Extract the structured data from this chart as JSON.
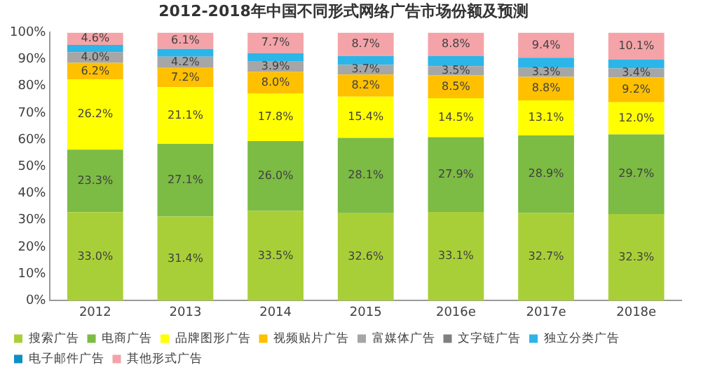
{
  "chart_data": {
    "type": "bar",
    "stacked": true,
    "title": "2012-2018年中国不同形式网络广告市场份额及预测",
    "categories": [
      "2012",
      "2013",
      "2014",
      "2015",
      "2016e",
      "2017e",
      "2018e"
    ],
    "ylim": [
      0,
      100
    ],
    "yticks": [
      {
        "value": 0,
        "label": "0%"
      },
      {
        "value": 10,
        "label": "10%"
      },
      {
        "value": 20,
        "label": "20%"
      },
      {
        "value": 30,
        "label": "30%"
      },
      {
        "value": 40,
        "label": "40%"
      },
      {
        "value": 50,
        "label": "50%"
      },
      {
        "value": 60,
        "label": "60%"
      },
      {
        "value": 70,
        "label": "70%"
      },
      {
        "value": 80,
        "label": "80%"
      },
      {
        "value": 90,
        "label": "90%"
      },
      {
        "value": 100,
        "label": "100%"
      }
    ],
    "grid": false,
    "legend": "bottom",
    "series": [
      {
        "name": "搜索广告",
        "color": "#a9cf38",
        "values": [
          33.0,
          31.4,
          33.5,
          32.6,
          33.1,
          32.7,
          32.3
        ],
        "value_labels": [
          "33.0%",
          "31.4%",
          "33.5%",
          "32.6%",
          "33.1%",
          "32.7%",
          "32.3%"
        ]
      },
      {
        "name": "电商广告",
        "color": "#7cbb44",
        "values": [
          23.3,
          27.1,
          26.0,
          28.1,
          27.9,
          28.9,
          29.7
        ],
        "value_labels": [
          "23.3%",
          "27.1%",
          "26.0%",
          "28.1%",
          "27.9%",
          "28.9%",
          "29.7%"
        ]
      },
      {
        "name": "品牌图形广告",
        "color": "#ffff00",
        "values": [
          26.2,
          21.1,
          17.8,
          15.4,
          14.5,
          13.1,
          12.0
        ],
        "value_labels": [
          "26.2%",
          "21.1%",
          "17.8%",
          "15.4%",
          "14.5%",
          "13.1%",
          "12.0%"
        ]
      },
      {
        "name": "视频贴片广告",
        "color": "#ffc000",
        "values": [
          6.2,
          7.2,
          8.0,
          8.2,
          8.5,
          8.8,
          9.2
        ],
        "value_labels": [
          "6.2%",
          "7.2%",
          "8.0%",
          "8.2%",
          "8.5%",
          "8.8%",
          "9.2%"
        ]
      },
      {
        "name": "富媒体广告",
        "color": "#a6a6a6",
        "values": [
          4.0,
          4.2,
          3.9,
          3.7,
          3.5,
          3.3,
          3.4
        ],
        "value_labels": [
          "4.0%",
          "4.2%",
          "3.9%",
          "3.7%",
          "3.5%",
          "3.3%",
          "3.4%"
        ]
      },
      {
        "name": "文字链广告",
        "color": "#7f7f7f",
        "values": [
          0,
          0,
          0,
          0,
          0,
          0,
          0
        ]
      },
      {
        "name": "独立分类广告",
        "color": "#2cb5e8",
        "values": [
          2.7,
          2.9,
          3.1,
          3.3,
          3.7,
          3.8,
          3.3
        ]
      },
      {
        "name": "电子邮件广告",
        "color": "#0e8fc4",
        "values": [
          0,
          0,
          0,
          0,
          0,
          0,
          0
        ]
      },
      {
        "name": "其他形式广告",
        "color": "#f4a3a8",
        "values": [
          4.6,
          6.1,
          7.7,
          8.7,
          8.8,
          9.4,
          10.1
        ],
        "value_labels": [
          "4.6%",
          "6.1%",
          "7.7%",
          "8.7%",
          "8.8%",
          "9.4%",
          "10.1%"
        ]
      }
    ]
  }
}
